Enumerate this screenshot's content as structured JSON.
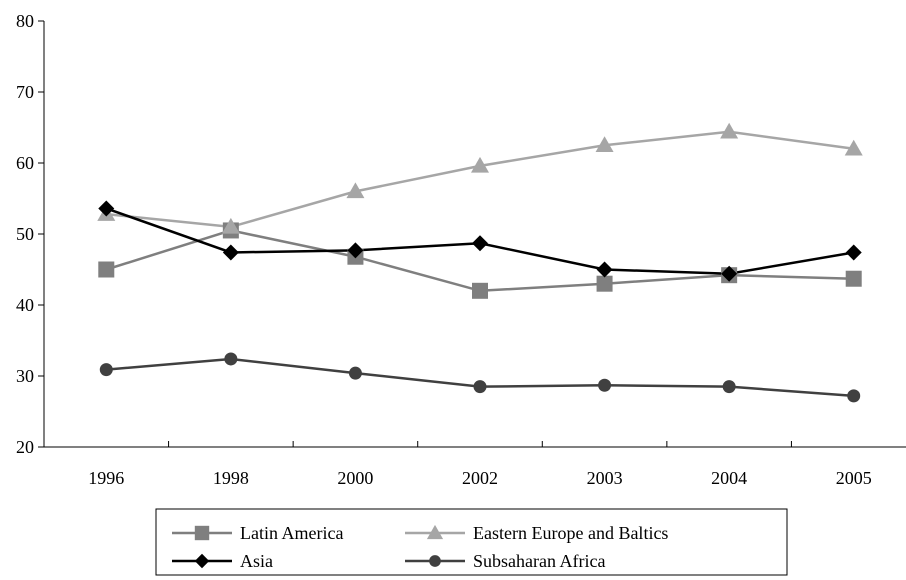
{
  "chart_data": {
    "type": "line",
    "title": "",
    "xlabel": "",
    "ylabel": "",
    "categories": [
      "1996",
      "1998",
      "2000",
      "2002",
      "2003",
      "2004",
      "2005"
    ],
    "ylim": [
      20,
      80
    ],
    "yticks": [
      20,
      30,
      40,
      50,
      60,
      70,
      80
    ],
    "grid": false,
    "legend_position": "bottom",
    "series": [
      {
        "name": "Latin America",
        "marker": "square",
        "color": "#7f7f7f",
        "values": [
          45.0,
          50.5,
          46.8,
          42.0,
          43.0,
          44.2,
          43.7
        ]
      },
      {
        "name": "Eastern Europe and Baltics",
        "marker": "triangle",
        "color": "#a6a6a6",
        "values": [
          52.8,
          51.0,
          56.0,
          59.6,
          62.5,
          64.4,
          62.0
        ]
      },
      {
        "name": "Asia",
        "marker": "diamond",
        "color": "#000000",
        "values": [
          53.6,
          47.4,
          47.7,
          48.7,
          45.0,
          44.4,
          47.4
        ]
      },
      {
        "name": "Subsaharan Africa",
        "marker": "circle",
        "color": "#404040",
        "values": [
          30.9,
          32.4,
          30.4,
          28.5,
          28.7,
          28.5,
          27.2
        ]
      }
    ]
  }
}
